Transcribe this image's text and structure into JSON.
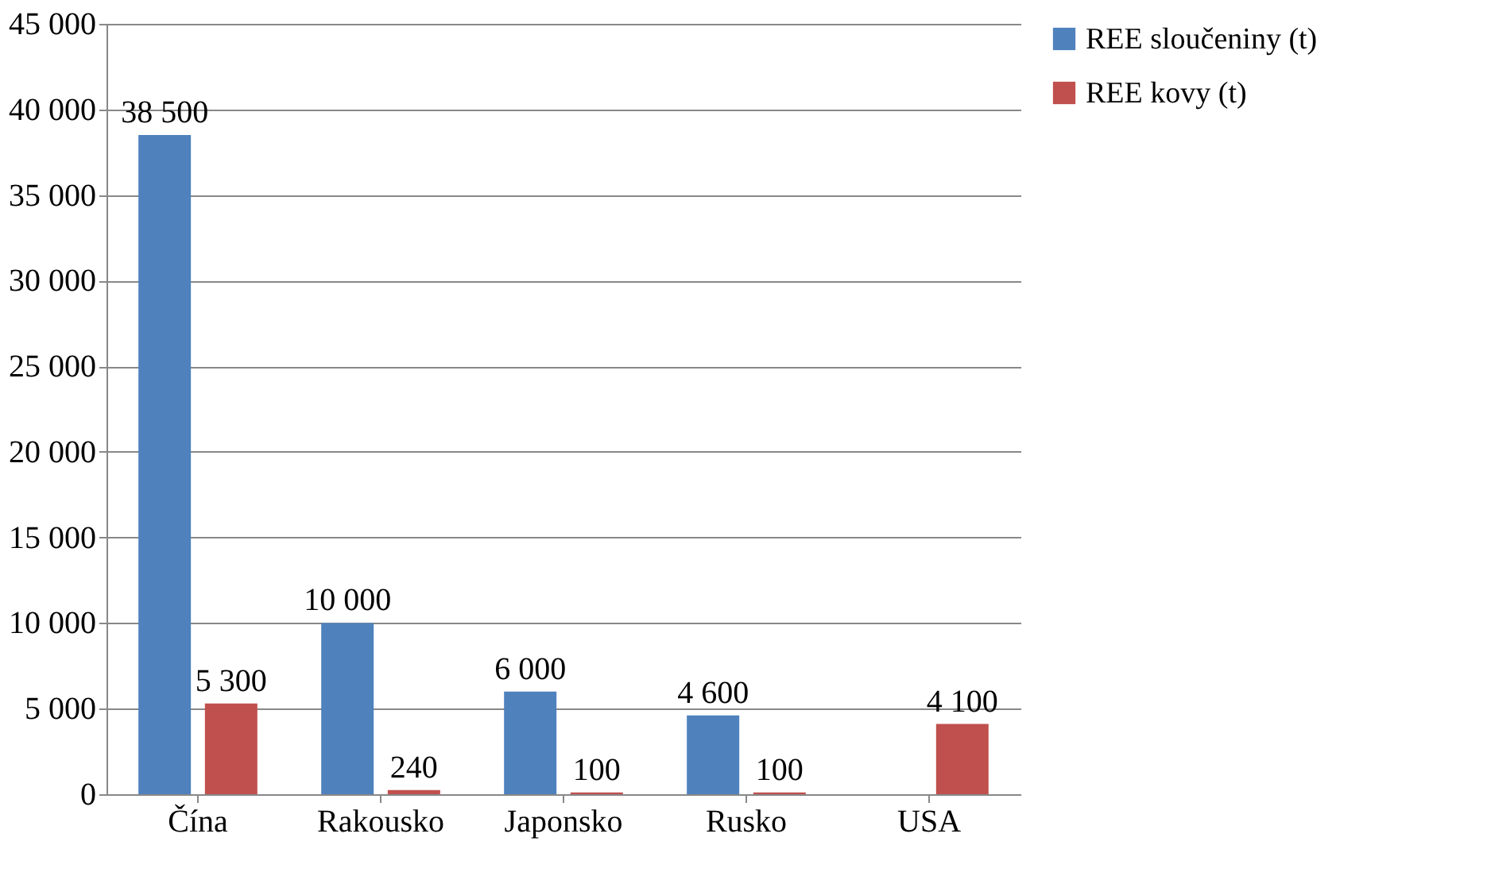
{
  "chart_data": {
    "type": "bar",
    "categories": [
      "Čína",
      "Rakousko",
      "Japonsko",
      "Rusko",
      "USA"
    ],
    "series": [
      {
        "name": "REE sloučeniny (t)",
        "color": "#4f81bd",
        "values": [
          38500,
          10000,
          6000,
          4600,
          null
        ],
        "value_labels": [
          "38 500",
          "10 000",
          "6 000",
          "4 600",
          null
        ]
      },
      {
        "name": "REE kovy (t)",
        "color": "#c0504d",
        "values": [
          5300,
          240,
          100,
          100,
          4100
        ],
        "value_labels": [
          "5 300",
          "240",
          "100",
          "100",
          "4 100"
        ]
      }
    ],
    "ylim": [
      0,
      45000
    ],
    "yticks": [
      0,
      {
        "value": 5000,
        "label": "5 000"
      },
      {
        "value": 10000,
        "label": "10 000"
      },
      {
        "value": 15000,
        "label": "15 000"
      },
      {
        "value": 20000,
        "label": "20 000"
      },
      {
        "value": 25000,
        "label": "25 000"
      },
      {
        "value": 30000,
        "label": "30 000"
      },
      {
        "value": 35000,
        "label": "35 000"
      },
      {
        "value": 40000,
        "label": "40 000"
      },
      {
        "value": 45000,
        "label": "45 000"
      }
    ],
    "grid": "y",
    "legend": "right"
  }
}
